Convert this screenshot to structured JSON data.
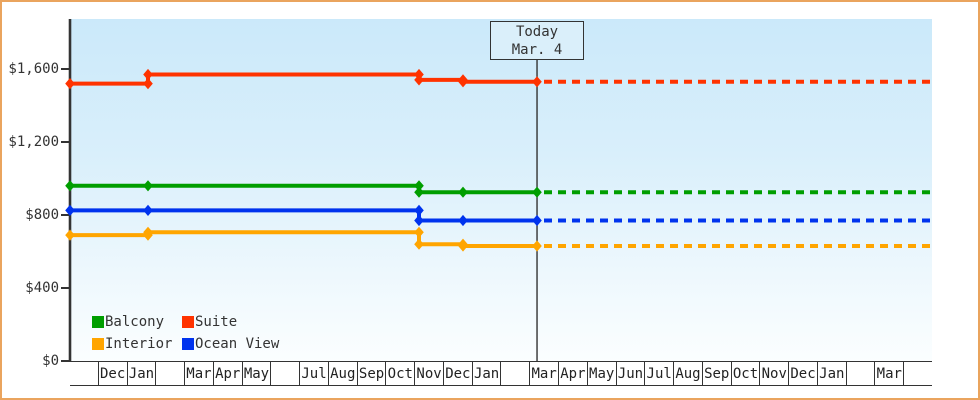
{
  "window": {
    "frame_border_color": "#eaa45e",
    "background_color": "#ffffff"
  },
  "chart_data": {
    "type": "line",
    "title": "",
    "description_visible_text_only": true,
    "y_axis": {
      "min": 0,
      "max": 1600,
      "ticks": [
        {
          "label": "$1,600",
          "value": 1600
        },
        {
          "label": "$1,200",
          "value": 1200
        },
        {
          "label": "$800",
          "value": 800
        },
        {
          "label": "$400",
          "value": 400
        },
        {
          "label": "$0",
          "value": 0
        }
      ]
    },
    "x_axis": {
      "unit": "month",
      "labels": [
        "",
        "Dec",
        "Jan",
        "",
        "Mar",
        "Apr",
        "May",
        "",
        "Jul",
        "Aug",
        "Sep",
        "Oct",
        "Nov",
        "Dec",
        "Jan",
        "",
        "Mar",
        "Apr",
        "May",
        "Jun",
        "Jul",
        "Aug",
        "Sep",
        "Oct",
        "Nov",
        "Dec",
        "Jan",
        "",
        "Mar",
        ""
      ]
    },
    "today": {
      "label": "Today",
      "date_label": "Mar. 4",
      "m": 16.254
    },
    "series": [
      {
        "name": "Suite",
        "color": "#ff3300",
        "points": [
          [
            0,
            1520
          ],
          [
            2.715,
            1520
          ],
          [
            2.715,
            1570
          ],
          [
            12.146,
            1570
          ],
          [
            12.146,
            1540
          ],
          [
            13.678,
            1540
          ],
          [
            13.678,
            1530
          ],
          [
            16.254,
            1530
          ]
        ],
        "projected_value": 1530
      },
      {
        "name": "Balcony",
        "color": "#009e00",
        "points": [
          [
            0,
            960
          ],
          [
            2.715,
            960
          ],
          [
            12.146,
            960
          ],
          [
            12.146,
            925
          ],
          [
            13.678,
            925
          ],
          [
            16.254,
            925
          ]
        ],
        "projected_value": 925
      },
      {
        "name": "Ocean View",
        "color": "#0033ee",
        "points": [
          [
            0,
            825
          ],
          [
            2.715,
            825
          ],
          [
            12.146,
            825
          ],
          [
            12.146,
            770
          ],
          [
            13.678,
            770
          ],
          [
            16.254,
            770
          ]
        ],
        "projected_value": 770
      },
      {
        "name": "Interior",
        "color": "#ffa500",
        "points": [
          [
            0,
            690
          ],
          [
            2.715,
            690
          ],
          [
            2.715,
            705
          ],
          [
            12.146,
            705
          ],
          [
            12.146,
            640
          ],
          [
            13.678,
            640
          ],
          [
            13.678,
            630
          ],
          [
            16.254,
            630
          ]
        ],
        "projected_value": 630
      }
    ],
    "legend": {
      "rows": [
        [
          "Balcony",
          "Suite"
        ],
        [
          "Interior",
          "Ocean View"
        ]
      ],
      "position": "bottom-left-inside-plot"
    },
    "layout_hints": {
      "projection_style": "dashed lines after today marker",
      "grid": "off",
      "plot_background": "light-blue vertical gradient"
    }
  }
}
